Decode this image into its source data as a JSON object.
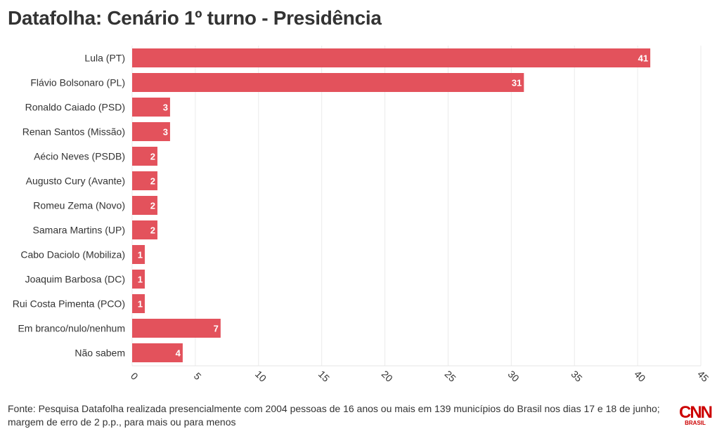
{
  "page": {
    "title": "Datafolha: Cenário 1º turno - Presidência",
    "source": "Fonte: Pesquisa Datafolha realizada presencialmente com 2004 pessoas de 16 anos ou mais em 139 municípios do Brasil nos dias 17 e 18 de junho; margem de erro de 2 p.p., para mais ou para menos",
    "logo_text": "CNN",
    "logo_subtext": "BRASIL"
  },
  "chart_data": {
    "type": "bar",
    "orientation": "horizontal",
    "title": "Datafolha: Cenário 1º turno - Presidência",
    "categories": [
      "Lula (PT)",
      "Flávio Bolsonaro (PL)",
      "Ronaldo Caiado (PSD)",
      "Renan Santos (Missão)",
      "Aécio Neves (PSDB)",
      "Augusto Cury (Avante)",
      "Romeu Zema (Novo)",
      "Samara Martins (UP)",
      "Cabo Daciolo (Mobiliza)",
      "Joaquim Barbosa (DC)",
      "Rui Costa Pimenta (PCO)",
      "Em branco/nulo/nenhum",
      "Não sabem"
    ],
    "values": [
      41,
      31,
      3,
      3,
      2,
      2,
      2,
      2,
      1,
      1,
      1,
      7,
      4
    ],
    "xlim": [
      0,
      45
    ],
    "xticks": [
      0,
      5,
      10,
      15,
      20,
      25,
      30,
      35,
      40,
      45
    ],
    "grid": true,
    "data_labels": true,
    "bar_color": "#e3525c",
    "label_color": "#ffffff"
  }
}
